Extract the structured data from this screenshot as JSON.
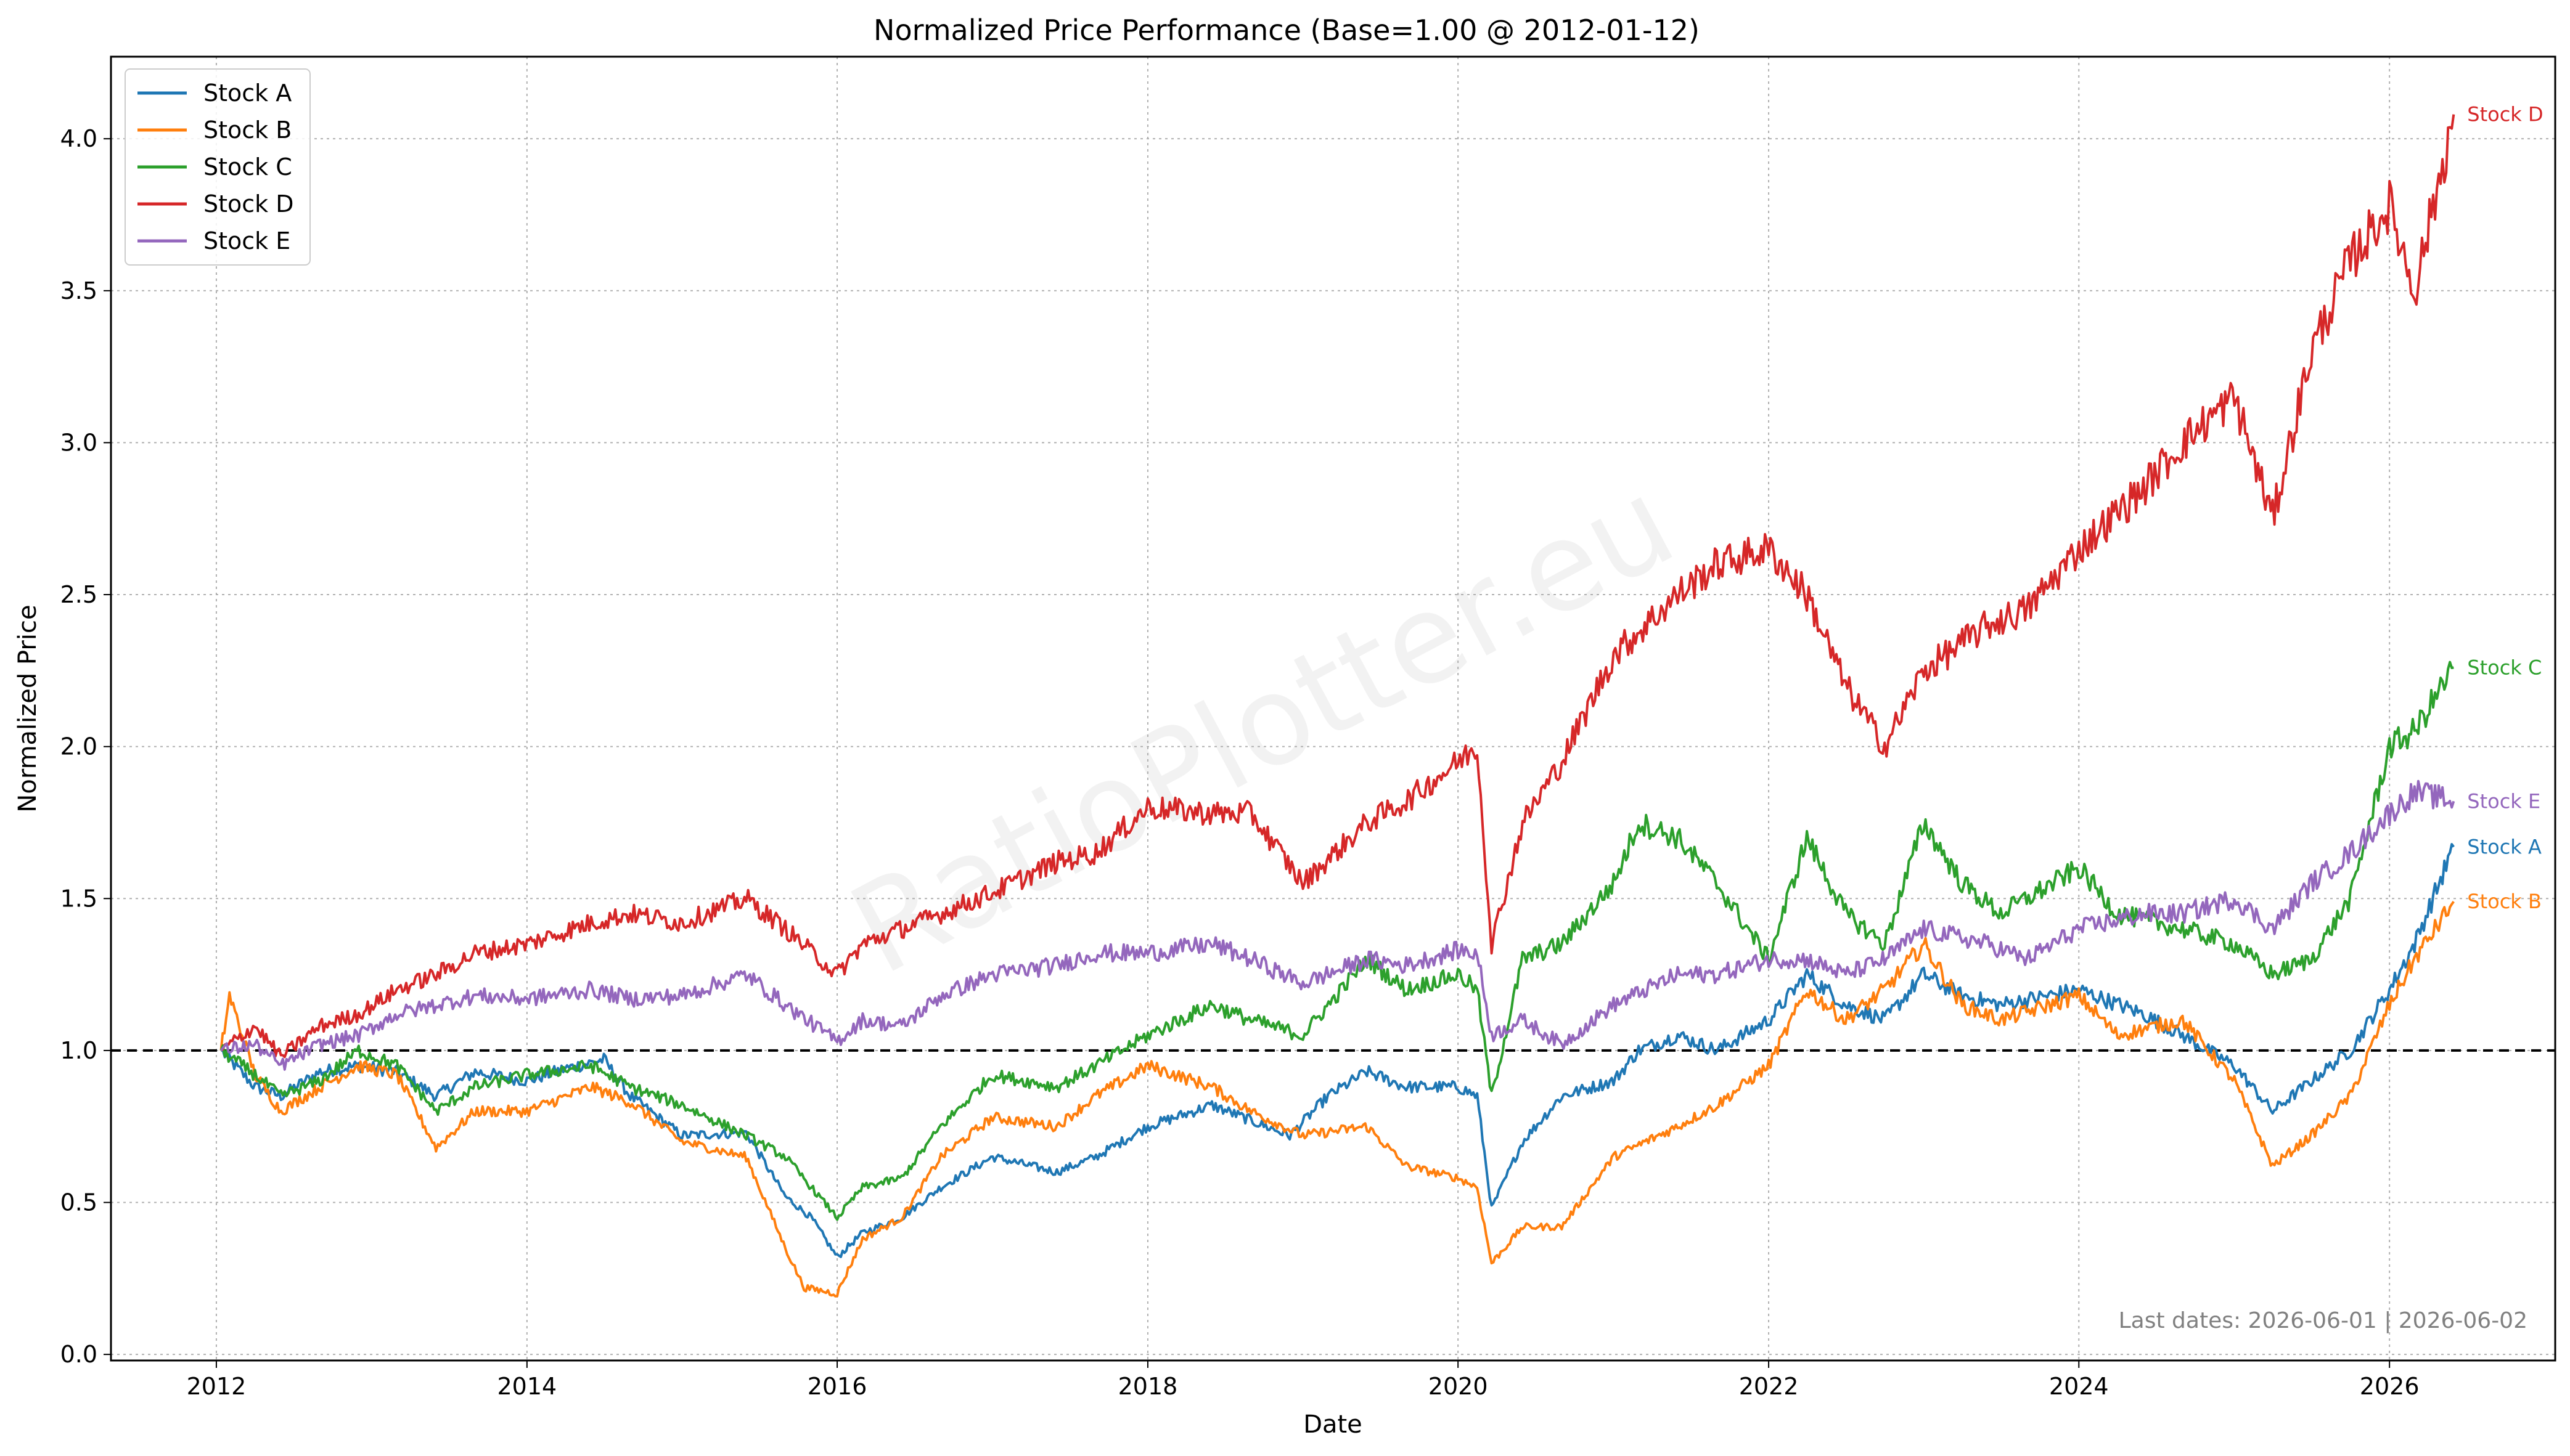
{
  "chart_data": {
    "type": "line",
    "title": "Normalized Price Performance (Base=1.00 @ 2012-01-12)",
    "xlabel": "Date",
    "ylabel": "Normalized Price",
    "x_ticks": [
      "2012",
      "2014",
      "2016",
      "2018",
      "2020",
      "2022",
      "2024",
      "2026"
    ],
    "x_tick_values": [
      "2012-01-01",
      "2014-01-01",
      "2016-01-01",
      "2018-01-01",
      "2020-01-01",
      "2022-01-01",
      "2024-01-01",
      "2026-01-01"
    ],
    "y_ticks": [
      "0.0",
      "0.5",
      "1.0",
      "1.5",
      "2.0",
      "2.5",
      "3.0",
      "3.5",
      "4.0"
    ],
    "y_tick_values": [
      0,
      0.5,
      1.0,
      1.5,
      2.0,
      2.5,
      3.0,
      3.5,
      4.0
    ],
    "xlim": [
      "2011-04-28",
      "2027-01-26"
    ],
    "ylim": [
      -0.02,
      4.27
    ],
    "grid": true,
    "legend_position": "top-left",
    "reference_line": {
      "y": 1.0,
      "style": "dashed",
      "color": "#000000"
    },
    "footnote": "Last dates: 2026-06-01 | 2026-06-02",
    "watermark": "RatioPlotter.eu",
    "series": [
      {
        "name": "Stock A",
        "color": "#1f77b4",
        "end_label": "Stock A",
        "points": [
          [
            "2012-01-12",
            1.0
          ],
          [
            "2012-04-01",
            0.88
          ],
          [
            "2012-06-01",
            0.85
          ],
          [
            "2012-09-01",
            0.93
          ],
          [
            "2012-12-01",
            0.95
          ],
          [
            "2013-03-01",
            0.93
          ],
          [
            "2013-06-01",
            0.85
          ],
          [
            "2013-09-01",
            0.93
          ],
          [
            "2014-01-01",
            0.9
          ],
          [
            "2014-04-01",
            0.94
          ],
          [
            "2014-07-01",
            0.97
          ],
          [
            "2014-09-01",
            0.85
          ],
          [
            "2015-01-01",
            0.72
          ],
          [
            "2015-06-01",
            0.73
          ],
          [
            "2015-09-01",
            0.52
          ],
          [
            "2015-11-01",
            0.45
          ],
          [
            "2016-01-01",
            0.32
          ],
          [
            "2016-03-01",
            0.4
          ],
          [
            "2016-06-01",
            0.45
          ],
          [
            "2016-09-01",
            0.55
          ],
          [
            "2017-01-01",
            0.65
          ],
          [
            "2017-06-01",
            0.6
          ],
          [
            "2017-09-01",
            0.65
          ],
          [
            "2018-01-01",
            0.75
          ],
          [
            "2018-06-01",
            0.82
          ],
          [
            "2018-12-01",
            0.72
          ],
          [
            "2019-03-01",
            0.85
          ],
          [
            "2019-06-01",
            0.93
          ],
          [
            "2019-09-01",
            0.88
          ],
          [
            "2020-01-01",
            0.88
          ],
          [
            "2020-02-15",
            0.85
          ],
          [
            "2020-03-20",
            0.48
          ],
          [
            "2020-06-01",
            0.7
          ],
          [
            "2020-09-01",
            0.85
          ],
          [
            "2021-01-01",
            0.9
          ],
          [
            "2021-03-01",
            1.0
          ],
          [
            "2021-06-01",
            1.05
          ],
          [
            "2021-09-01",
            1.0
          ],
          [
            "2022-01-01",
            1.1
          ],
          [
            "2022-04-01",
            1.25
          ],
          [
            "2022-07-01",
            1.15
          ],
          [
            "2022-10-01",
            1.1
          ],
          [
            "2023-01-01",
            1.25
          ],
          [
            "2023-04-01",
            1.18
          ],
          [
            "2023-07-01",
            1.15
          ],
          [
            "2024-01-01",
            1.2
          ],
          [
            "2024-06-01",
            1.12
          ],
          [
            "2024-09-01",
            1.05
          ],
          [
            "2025-01-01",
            0.95
          ],
          [
            "2025-04-01",
            0.8
          ],
          [
            "2025-07-01",
            0.9
          ],
          [
            "2025-10-01",
            1.0
          ],
          [
            "2026-01-01",
            1.2
          ],
          [
            "2026-03-01",
            1.35
          ],
          [
            "2026-06-01",
            1.67
          ]
        ]
      },
      {
        "name": "Stock B",
        "color": "#ff7f0e",
        "end_label": "Stock B",
        "points": [
          [
            "2012-01-12",
            1.0
          ],
          [
            "2012-02-01",
            1.18
          ],
          [
            "2012-04-01",
            0.92
          ],
          [
            "2012-06-01",
            0.8
          ],
          [
            "2012-09-01",
            0.88
          ],
          [
            "2012-12-01",
            0.95
          ],
          [
            "2013-03-01",
            0.92
          ],
          [
            "2013-06-01",
            0.68
          ],
          [
            "2013-09-01",
            0.8
          ],
          [
            "2014-01-01",
            0.8
          ],
          [
            "2014-06-01",
            0.88
          ],
          [
            "2014-09-01",
            0.83
          ],
          [
            "2015-01-01",
            0.7
          ],
          [
            "2015-06-01",
            0.65
          ],
          [
            "2015-09-01",
            0.35
          ],
          [
            "2015-10-15",
            0.22
          ],
          [
            "2016-01-01",
            0.2
          ],
          [
            "2016-03-01",
            0.38
          ],
          [
            "2016-06-01",
            0.45
          ],
          [
            "2016-09-01",
            0.65
          ],
          [
            "2017-01-01",
            0.78
          ],
          [
            "2017-06-01",
            0.75
          ],
          [
            "2017-09-01",
            0.85
          ],
          [
            "2018-01-01",
            0.95
          ],
          [
            "2018-06-01",
            0.88
          ],
          [
            "2018-09-01",
            0.8
          ],
          [
            "2019-01-01",
            0.72
          ],
          [
            "2019-06-01",
            0.75
          ],
          [
            "2019-09-01",
            0.62
          ],
          [
            "2020-01-01",
            0.58
          ],
          [
            "2020-02-15",
            0.55
          ],
          [
            "2020-03-20",
            0.3
          ],
          [
            "2020-06-01",
            0.42
          ],
          [
            "2020-09-01",
            0.42
          ],
          [
            "2021-01-01",
            0.65
          ],
          [
            "2021-06-01",
            0.75
          ],
          [
            "2021-09-01",
            0.82
          ],
          [
            "2022-01-01",
            0.95
          ],
          [
            "2022-04-01",
            1.2
          ],
          [
            "2022-07-01",
            1.1
          ],
          [
            "2022-10-01",
            1.2
          ],
          [
            "2023-01-01",
            1.35
          ],
          [
            "2023-04-01",
            1.15
          ],
          [
            "2023-07-01",
            1.1
          ],
          [
            "2024-01-01",
            1.18
          ],
          [
            "2024-04-01",
            1.05
          ],
          [
            "2024-09-01",
            1.1
          ],
          [
            "2025-01-01",
            0.9
          ],
          [
            "2025-04-01",
            0.62
          ],
          [
            "2025-07-01",
            0.72
          ],
          [
            "2025-10-01",
            0.85
          ],
          [
            "2026-01-01",
            1.15
          ],
          [
            "2026-03-01",
            1.3
          ],
          [
            "2026-06-01",
            1.49
          ]
        ]
      },
      {
        "name": "Stock C",
        "color": "#2ca02c",
        "end_label": "Stock C",
        "points": [
          [
            "2012-01-12",
            1.0
          ],
          [
            "2012-04-01",
            0.92
          ],
          [
            "2012-06-01",
            0.85
          ],
          [
            "2012-09-01",
            0.9
          ],
          [
            "2012-12-01",
            1.0
          ],
          [
            "2013-03-01",
            0.95
          ],
          [
            "2013-06-01",
            0.8
          ],
          [
            "2013-09-01",
            0.88
          ],
          [
            "2014-01-01",
            0.92
          ],
          [
            "2014-06-01",
            0.95
          ],
          [
            "2014-09-01",
            0.88
          ],
          [
            "2015-01-01",
            0.82
          ],
          [
            "2015-06-01",
            0.72
          ],
          [
            "2015-09-01",
            0.65
          ],
          [
            "2016-01-01",
            0.45
          ],
          [
            "2016-03-01",
            0.55
          ],
          [
            "2016-06-01",
            0.58
          ],
          [
            "2016-09-01",
            0.75
          ],
          [
            "2017-01-01",
            0.92
          ],
          [
            "2017-06-01",
            0.88
          ],
          [
            "2017-09-01",
            0.95
          ],
          [
            "2018-01-01",
            1.05
          ],
          [
            "2018-06-01",
            1.15
          ],
          [
            "2018-09-01",
            1.1
          ],
          [
            "2019-01-01",
            1.05
          ],
          [
            "2019-06-01",
            1.3
          ],
          [
            "2019-09-01",
            1.2
          ],
          [
            "2020-01-01",
            1.25
          ],
          [
            "2020-02-15",
            1.2
          ],
          [
            "2020-03-20",
            0.85
          ],
          [
            "2020-06-01",
            1.3
          ],
          [
            "2020-09-01",
            1.35
          ],
          [
            "2021-01-01",
            1.55
          ],
          [
            "2021-03-01",
            1.75
          ],
          [
            "2021-06-01",
            1.7
          ],
          [
            "2021-09-01",
            1.55
          ],
          [
            "2022-01-01",
            1.3
          ],
          [
            "2022-04-01",
            1.7
          ],
          [
            "2022-07-01",
            1.45
          ],
          [
            "2022-10-01",
            1.35
          ],
          [
            "2023-01-01",
            1.75
          ],
          [
            "2023-04-01",
            1.55
          ],
          [
            "2023-07-01",
            1.45
          ],
          [
            "2024-01-01",
            1.6
          ],
          [
            "2024-04-01",
            1.45
          ],
          [
            "2024-09-01",
            1.4
          ],
          [
            "2025-01-01",
            1.35
          ],
          [
            "2025-04-01",
            1.25
          ],
          [
            "2025-07-01",
            1.3
          ],
          [
            "2025-10-01",
            1.5
          ],
          [
            "2026-01-01",
            2.0
          ],
          [
            "2026-03-01",
            2.05
          ],
          [
            "2026-06-01",
            2.26
          ]
        ]
      },
      {
        "name": "Stock D",
        "color": "#d62728",
        "end_label": "Stock D",
        "points": [
          [
            "2012-01-12",
            1.0
          ],
          [
            "2012-04-01",
            1.08
          ],
          [
            "2012-06-01",
            0.98
          ],
          [
            "2012-09-01",
            1.08
          ],
          [
            "2012-12-01",
            1.12
          ],
          [
            "2013-03-01",
            1.2
          ],
          [
            "2013-06-01",
            1.25
          ],
          [
            "2013-09-01",
            1.32
          ],
          [
            "2014-01-01",
            1.35
          ],
          [
            "2014-06-01",
            1.42
          ],
          [
            "2014-09-01",
            1.45
          ],
          [
            "2015-01-01",
            1.42
          ],
          [
            "2015-06-01",
            1.5
          ],
          [
            "2015-09-01",
            1.4
          ],
          [
            "2016-01-01",
            1.25
          ],
          [
            "2016-03-01",
            1.35
          ],
          [
            "2016-06-01",
            1.4
          ],
          [
            "2016-09-01",
            1.45
          ],
          [
            "2017-01-01",
            1.52
          ],
          [
            "2017-06-01",
            1.62
          ],
          [
            "2017-09-01",
            1.65
          ],
          [
            "2018-01-01",
            1.8
          ],
          [
            "2018-06-01",
            1.78
          ],
          [
            "2018-09-01",
            1.78
          ],
          [
            "2019-01-01",
            1.55
          ],
          [
            "2019-06-01",
            1.75
          ],
          [
            "2019-09-01",
            1.82
          ],
          [
            "2020-01-01",
            1.95
          ],
          [
            "2020-02-15",
            2.0
          ],
          [
            "2020-03-20",
            1.35
          ],
          [
            "2020-06-01",
            1.75
          ],
          [
            "2020-09-01",
            1.95
          ],
          [
            "2021-01-01",
            2.3
          ],
          [
            "2021-06-01",
            2.5
          ],
          [
            "2021-09-01",
            2.6
          ],
          [
            "2022-01-01",
            2.65
          ],
          [
            "2022-04-01",
            2.5
          ],
          [
            "2022-07-01",
            2.2
          ],
          [
            "2022-10-01",
            2.0
          ],
          [
            "2023-01-01",
            2.25
          ],
          [
            "2023-06-01",
            2.4
          ],
          [
            "2023-09-01",
            2.45
          ],
          [
            "2024-01-01",
            2.65
          ],
          [
            "2024-06-01",
            2.85
          ],
          [
            "2024-09-01",
            3.0
          ],
          [
            "2025-01-01",
            3.15
          ],
          [
            "2025-04-01",
            2.75
          ],
          [
            "2025-07-01",
            3.3
          ],
          [
            "2025-10-01",
            3.6
          ],
          [
            "2026-01-01",
            3.78
          ],
          [
            "2026-03-01",
            3.5
          ],
          [
            "2026-06-01",
            4.08
          ]
        ]
      },
      {
        "name": "Stock E",
        "color": "#9467bd",
        "end_label": "Stock E",
        "points": [
          [
            "2012-01-12",
            1.0
          ],
          [
            "2012-04-01",
            1.02
          ],
          [
            "2012-06-01",
            0.95
          ],
          [
            "2012-09-01",
            1.02
          ],
          [
            "2012-12-01",
            1.05
          ],
          [
            "2013-03-01",
            1.12
          ],
          [
            "2013-06-01",
            1.15
          ],
          [
            "2013-09-01",
            1.18
          ],
          [
            "2014-01-01",
            1.17
          ],
          [
            "2014-06-01",
            1.2
          ],
          [
            "2014-09-01",
            1.17
          ],
          [
            "2015-01-01",
            1.18
          ],
          [
            "2015-06-01",
            1.25
          ],
          [
            "2015-09-01",
            1.15
          ],
          [
            "2016-01-01",
            1.03
          ],
          [
            "2016-03-01",
            1.1
          ],
          [
            "2016-06-01",
            1.08
          ],
          [
            "2016-09-01",
            1.18
          ],
          [
            "2017-01-01",
            1.25
          ],
          [
            "2017-06-01",
            1.28
          ],
          [
            "2017-09-01",
            1.32
          ],
          [
            "2018-01-01",
            1.32
          ],
          [
            "2018-06-01",
            1.35
          ],
          [
            "2018-09-01",
            1.3
          ],
          [
            "2019-01-01",
            1.22
          ],
          [
            "2019-06-01",
            1.3
          ],
          [
            "2019-09-01",
            1.28
          ],
          [
            "2020-01-01",
            1.33
          ],
          [
            "2020-02-15",
            1.32
          ],
          [
            "2020-03-20",
            1.05
          ],
          [
            "2020-06-01",
            1.1
          ],
          [
            "2020-09-01",
            1.02
          ],
          [
            "2021-01-01",
            1.15
          ],
          [
            "2021-06-01",
            1.25
          ],
          [
            "2021-09-01",
            1.25
          ],
          [
            "2022-01-01",
            1.3
          ],
          [
            "2022-04-01",
            1.3
          ],
          [
            "2022-07-01",
            1.25
          ],
          [
            "2022-10-01",
            1.3
          ],
          [
            "2023-01-01",
            1.4
          ],
          [
            "2023-06-01",
            1.35
          ],
          [
            "2023-09-01",
            1.3
          ],
          [
            "2024-01-01",
            1.4
          ],
          [
            "2024-06-01",
            1.45
          ],
          [
            "2024-09-01",
            1.45
          ],
          [
            "2025-01-01",
            1.5
          ],
          [
            "2025-04-01",
            1.4
          ],
          [
            "2025-07-01",
            1.55
          ],
          [
            "2025-10-01",
            1.65
          ],
          [
            "2026-01-01",
            1.78
          ],
          [
            "2026-03-01",
            1.85
          ],
          [
            "2026-06-01",
            1.82
          ]
        ]
      }
    ]
  }
}
